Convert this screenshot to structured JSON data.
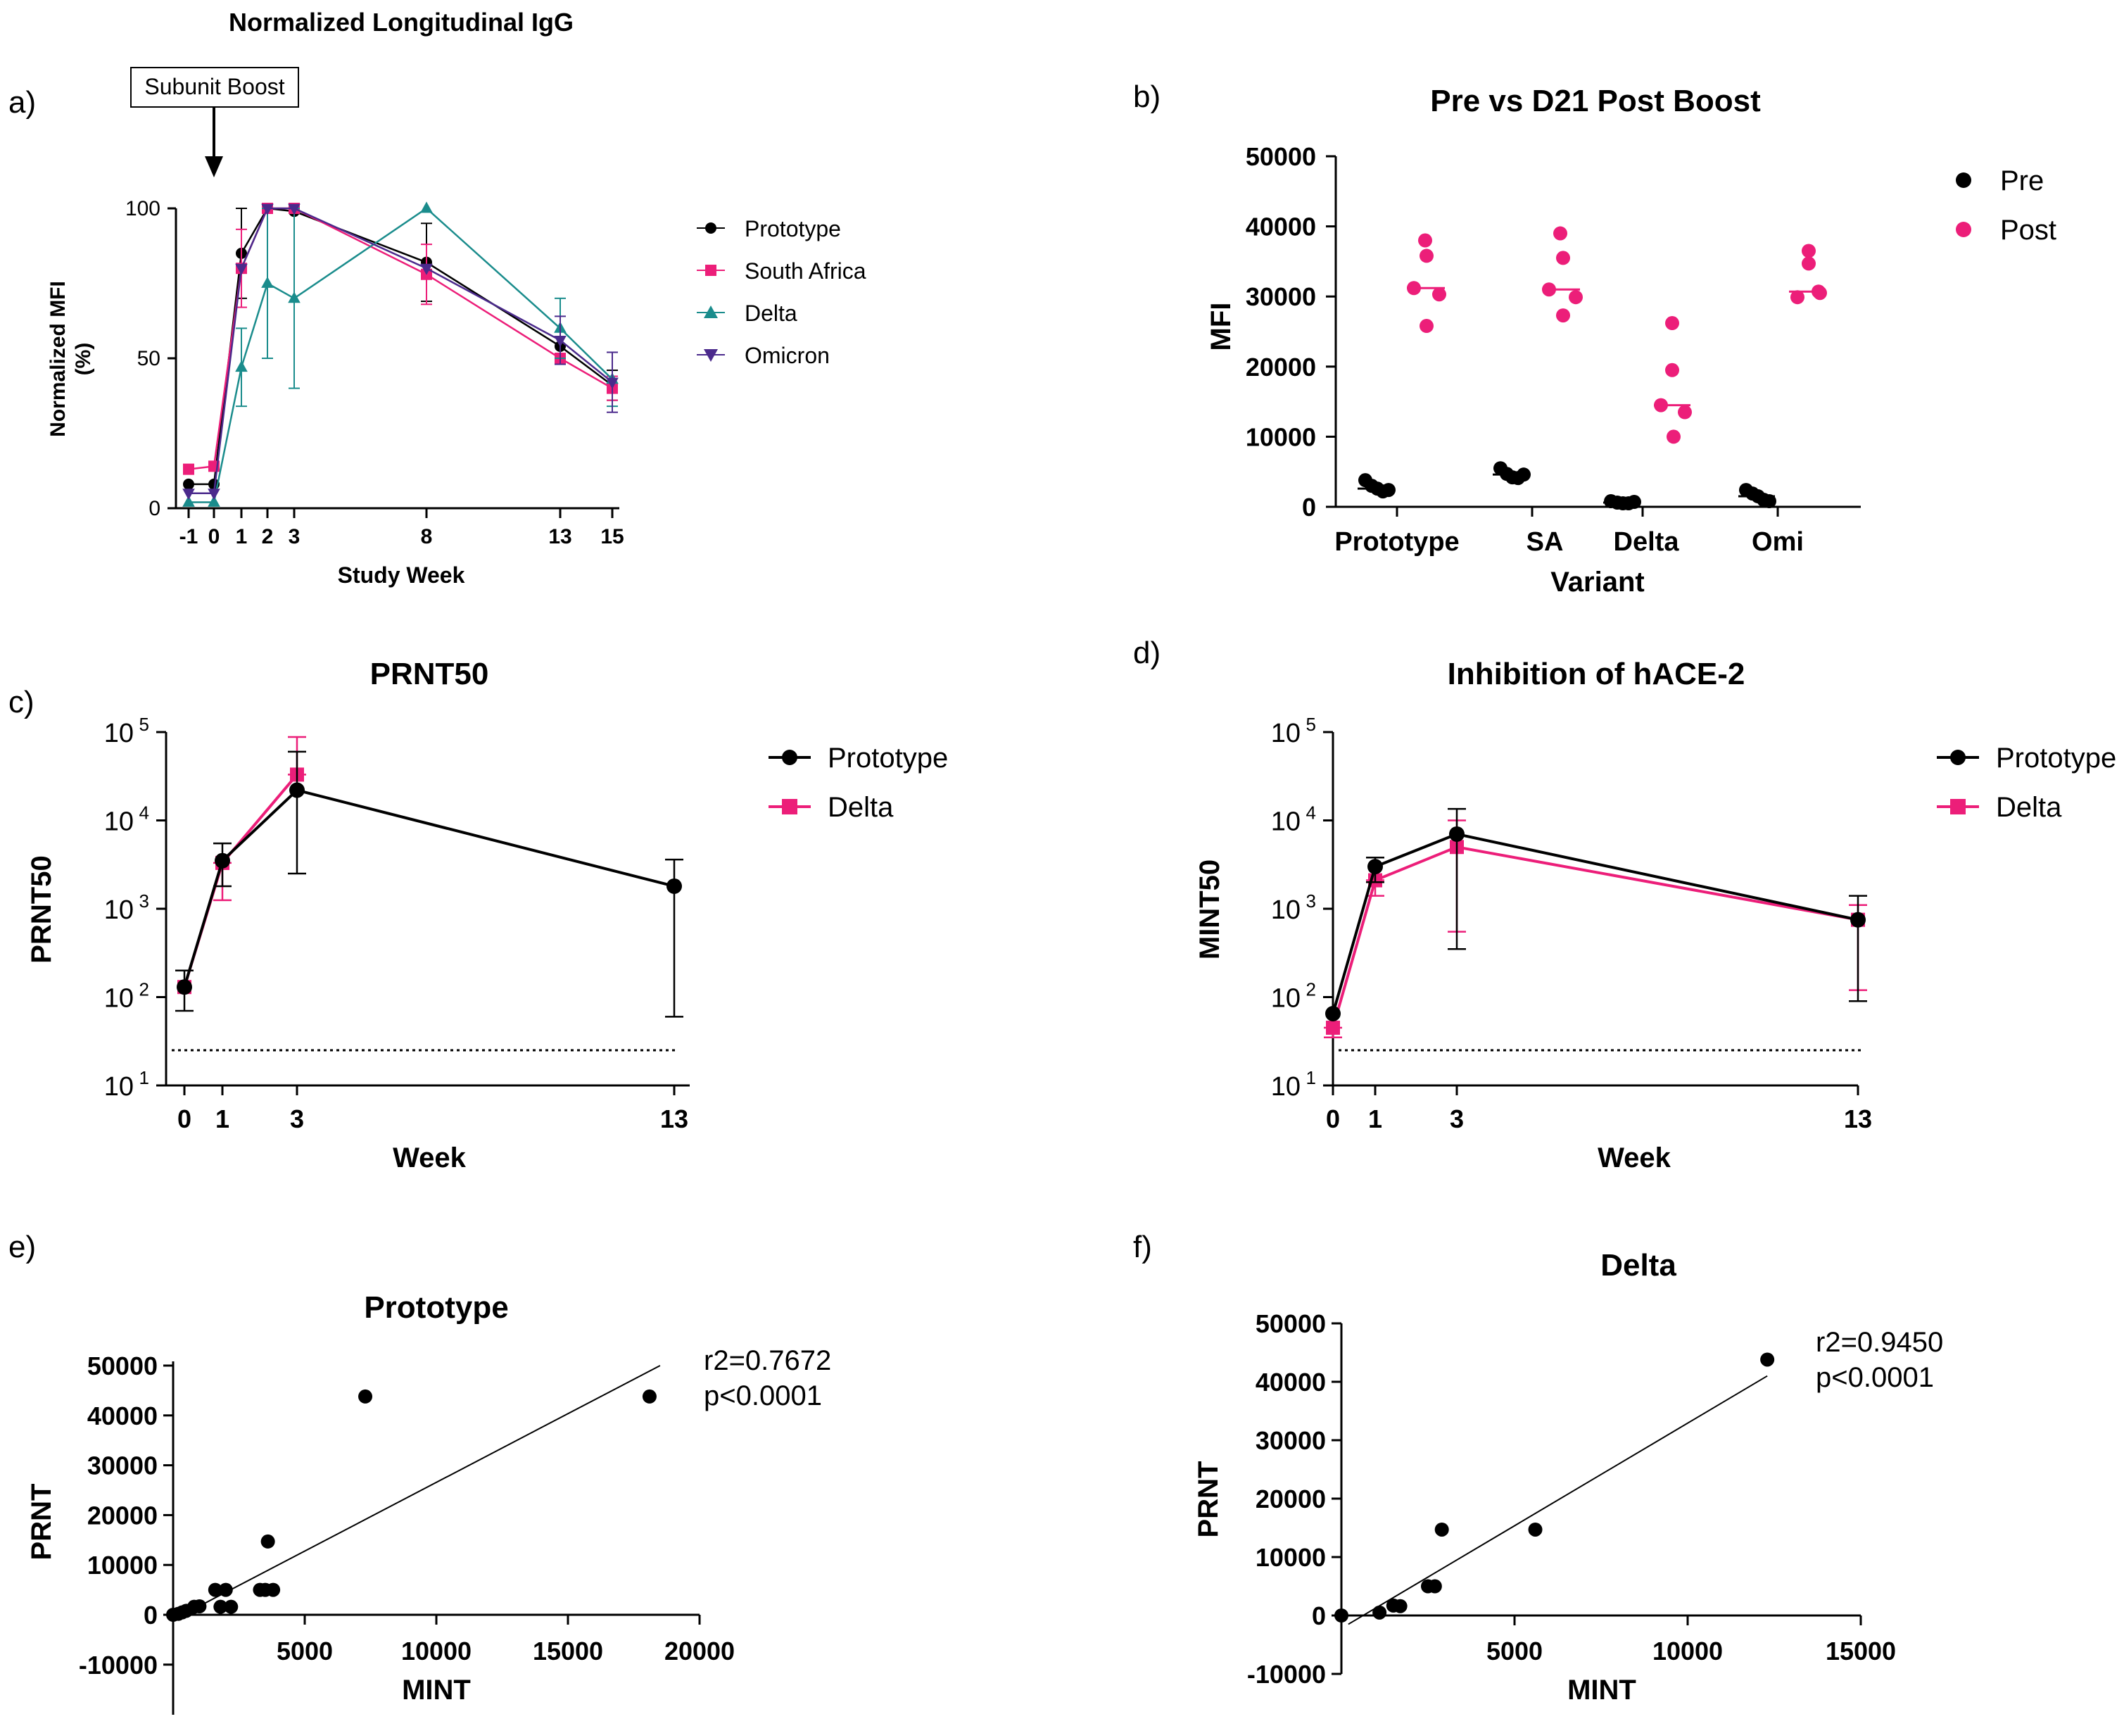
{
  "colors": {
    "black": "#000000",
    "pink": "#ec1e79",
    "teal": "#1a8c8c",
    "purple": "#4b2a8c"
  },
  "chart_data": [
    {
      "id": "a",
      "type": "line",
      "panel_label": "a)",
      "title": "Normalized Longitudinal IgG",
      "annotation": "Subunit Boost",
      "xlabel": "Study Week",
      "ylabel_lines": [
        "Normalized MFI",
        "(%)"
      ],
      "x_ticks": [
        "-1",
        "0",
        "1",
        "2",
        "3",
        "8",
        "13",
        "15"
      ],
      "x_tick_values": [
        -1,
        0,
        1,
        2,
        3,
        8,
        13,
        15
      ],
      "y_ticks": [
        "0",
        "50",
        "100"
      ],
      "ylim": [
        0,
        100
      ],
      "legend_position": "right",
      "series": [
        {
          "name": "Prototype",
          "marker": "circle",
          "color": "#000000",
          "x": [
            -1,
            0,
            1,
            2,
            3,
            8,
            13,
            15
          ],
          "y": [
            8,
            8,
            85,
            100,
            99,
            82,
            54,
            41
          ],
          "err": [
            0,
            0,
            15,
            0,
            0,
            13,
            0,
            5
          ]
        },
        {
          "name": "South Africa",
          "marker": "square",
          "color": "#ec1e79",
          "x": [
            -1,
            0,
            1,
            2,
            3,
            8,
            13,
            15
          ],
          "y": [
            13,
            14,
            80,
            100,
            100,
            78,
            50,
            40
          ],
          "err": [
            0,
            0,
            13,
            0,
            0,
            10,
            0,
            4
          ]
        },
        {
          "name": "Delta",
          "marker": "triangle-up",
          "color": "#1a8c8c",
          "x": [
            -1,
            0,
            1,
            2,
            3,
            8,
            13,
            15
          ],
          "y": [
            2,
            2,
            47,
            75,
            70,
            100,
            60,
            43
          ],
          "err": [
            0,
            0,
            13,
            25,
            30,
            0,
            10,
            9
          ]
        },
        {
          "name": "Omicron",
          "marker": "triangle-down",
          "color": "#4b2a8c",
          "x": [
            -1,
            0,
            1,
            2,
            3,
            8,
            13,
            15
          ],
          "y": [
            5,
            5,
            80,
            100,
            100,
            80,
            56,
            42
          ],
          "err": [
            0,
            0,
            0,
            0,
            0,
            0,
            8,
            10
          ]
        }
      ]
    },
    {
      "id": "b",
      "type": "scatter",
      "panel_label": "b)",
      "title": "Pre vs D21 Post Boost",
      "xlabel": "Variant",
      "ylabel": "MFI",
      "categories": [
        "Prototype",
        "SA",
        "Delta",
        "Omi"
      ],
      "y_ticks": [
        "0",
        "10000",
        "20000",
        "30000",
        "40000",
        "50000"
      ],
      "ylim": [
        0,
        50000
      ],
      "legend_position": "top-right",
      "series": [
        {
          "name": "Pre",
          "color": "#000000",
          "points": [
            [
              3800,
              3000,
              2600,
              2200,
              2400
            ],
            [
              5500,
              4700,
              4200,
              4100,
              4600
            ],
            [
              800,
              600,
              500,
              500,
              700
            ],
            [
              2400,
              1900,
              1500,
              1000,
              800
            ]
          ],
          "medians": [
            2600,
            4600,
            600,
            1500
          ]
        },
        {
          "name": "Post",
          "color": "#ec1e79",
          "points": [
            [
              38000,
              35800,
              31200,
              30300,
              25800
            ],
            [
              39000,
              35500,
              31000,
              29900,
              27300
            ],
            [
              26200,
              19500,
              14500,
              13500,
              10000
            ],
            [
              36500,
              34700,
              30700,
              30500,
              29900
            ]
          ],
          "medians": [
            31200,
            31000,
            14500,
            30700
          ]
        }
      ]
    },
    {
      "id": "c",
      "type": "line",
      "panel_label": "c)",
      "title": "PRNT50",
      "xlabel": "Week",
      "ylabel": "PRNT50",
      "yscale": "log",
      "ylim": [
        10,
        100000
      ],
      "x_ticks": [
        "0",
        "1",
        "3",
        "13"
      ],
      "x_tick_values": [
        0,
        1,
        3,
        13
      ],
      "y_ticks": [
        {
          "base": "10",
          "exp": "1"
        },
        {
          "base": "10",
          "exp": "2"
        },
        {
          "base": "10",
          "exp": "3"
        },
        {
          "base": "10",
          "exp": "4"
        },
        {
          "base": "10",
          "exp": "5"
        }
      ],
      "limit_of_detection": 25,
      "legend_position": "right",
      "series": [
        {
          "name": "Prototype",
          "marker": "circle",
          "color": "#000000",
          "x": [
            0,
            1,
            3,
            13
          ],
          "y": [
            130,
            3500,
            22000,
            1800
          ],
          "lo": [
            70,
            1800,
            2500,
            60
          ],
          "hi": [
            200,
            5500,
            60000,
            3600
          ]
        },
        {
          "name": "Delta",
          "marker": "square",
          "color": "#ec1e79",
          "x": [
            0,
            1,
            3
          ],
          "y": [
            130,
            3300,
            33000
          ],
          "lo": [
            130,
            1250,
            33000
          ],
          "hi": [
            130,
            3300,
            88000
          ]
        }
      ]
    },
    {
      "id": "d",
      "type": "line",
      "panel_label": "d)",
      "title": "Inhibition of hACE-2",
      "xlabel": "Week",
      "ylabel": "MINT50",
      "yscale": "log",
      "ylim": [
        10,
        100000
      ],
      "x_ticks": [
        "0",
        "1",
        "3",
        "13"
      ],
      "x_tick_values": [
        0,
        1,
        3,
        13
      ],
      "y_ticks": [
        {
          "base": "10",
          "exp": "1"
        },
        {
          "base": "10",
          "exp": "2"
        },
        {
          "base": "10",
          "exp": "3"
        },
        {
          "base": "10",
          "exp": "4"
        },
        {
          "base": "10",
          "exp": "5"
        }
      ],
      "limit_of_detection": 25,
      "legend_position": "right",
      "series": [
        {
          "name": "Prototype",
          "marker": "circle",
          "color": "#000000",
          "x": [
            0,
            1,
            3,
            13
          ],
          "y": [
            65,
            3000,
            7000,
            750
          ],
          "lo": [
            65,
            2000,
            350,
            90
          ],
          "hi": [
            65,
            3800,
            13500,
            1400
          ]
        },
        {
          "name": "Delta",
          "marker": "square",
          "color": "#ec1e79",
          "x": [
            0,
            1,
            3,
            13
          ],
          "y": [
            45,
            2100,
            5000,
            750
          ],
          "lo": [
            35,
            1400,
            550,
            120
          ],
          "hi": [
            45,
            2100,
            10000,
            1100
          ]
        }
      ]
    },
    {
      "id": "e",
      "type": "scatter",
      "panel_label": "e)",
      "title": "Prototype",
      "xlabel": "MINT",
      "ylabel": "PRNT",
      "x_ticks": [
        "5000",
        "10000",
        "15000",
        "20000"
      ],
      "x_tick_values": [
        5000,
        10000,
        15000,
        20000
      ],
      "y_ticks": [
        "-10000",
        "0",
        "10000",
        "20000",
        "30000",
        "40000",
        "50000"
      ],
      "y_tick_values": [
        -10000,
        0,
        10000,
        20000,
        30000,
        40000,
        50000
      ],
      "xlim": [
        0,
        20000
      ],
      "ylim": [
        -20000,
        50000
      ],
      "annotation_lines": [
        "r2=0.7672",
        "p<0.0001"
      ],
      "points": [
        [
          0,
          0
        ],
        [
          200,
          200
        ],
        [
          350,
          500
        ],
        [
          500,
          800
        ],
        [
          800,
          1600
        ],
        [
          1000,
          1700
        ],
        [
          1600,
          5000
        ],
        [
          1800,
          1600
        ],
        [
          2000,
          5000
        ],
        [
          2200,
          1600
        ],
        [
          3300,
          5000
        ],
        [
          3500,
          5000
        ],
        [
          3600,
          14700
        ],
        [
          3800,
          5000
        ],
        [
          7300,
          43800
        ],
        [
          18100,
          43800
        ]
      ],
      "fit": {
        "x": [
          0,
          18500
        ],
        "y": [
          -1000,
          50000
        ]
      }
    },
    {
      "id": "f",
      "type": "scatter",
      "panel_label": "f)",
      "title": "Delta",
      "xlabel": "MINT",
      "ylabel": "PRNT",
      "x_ticks": [
        "5000",
        "10000",
        "15000"
      ],
      "x_tick_values": [
        5000,
        10000,
        15000
      ],
      "y_ticks": [
        "-10000",
        "0",
        "10000",
        "20000",
        "30000",
        "40000",
        "50000"
      ],
      "y_tick_values": [
        -10000,
        0,
        10000,
        20000,
        30000,
        40000,
        50000
      ],
      "xlim": [
        0,
        15000
      ],
      "ylim": [
        -10000,
        50000
      ],
      "annotation_lines": [
        "r2=0.9450",
        "p<0.0001"
      ],
      "points": [
        [
          0,
          0
        ],
        [
          1100,
          500
        ],
        [
          1500,
          1700
        ],
        [
          1700,
          1600
        ],
        [
          2500,
          5000
        ],
        [
          2700,
          5000
        ],
        [
          2900,
          14700
        ],
        [
          5600,
          14700
        ],
        [
          12300,
          43800
        ]
      ],
      "fit": {
        "x": [
          200,
          12300
        ],
        "y": [
          -1500,
          41000
        ]
      }
    }
  ]
}
